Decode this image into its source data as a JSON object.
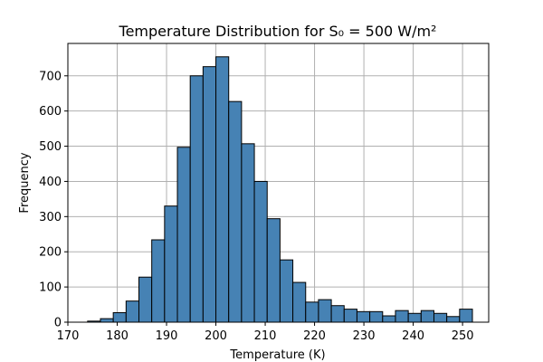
{
  "chart_data": {
    "type": "bar",
    "title": "Temperature Distribution for S₀ = 500 W/m²",
    "xlabel": "Temperature (K)",
    "ylabel": "Frequency",
    "xlim": [
      170,
      255.3
    ],
    "ylim": [
      0,
      792
    ],
    "x_ticks": [
      170,
      180,
      190,
      200,
      210,
      220,
      230,
      240,
      250
    ],
    "y_ticks": [
      0,
      100,
      200,
      300,
      400,
      500,
      600,
      700
    ],
    "grid": true,
    "bin_edges": [
      174.0,
      176.6,
      179.2,
      181.8,
      184.4,
      187.0,
      189.6,
      192.2,
      194.8,
      197.4,
      200.0,
      202.6,
      205.2,
      207.8,
      210.4,
      213.0,
      215.6,
      218.2,
      220.8,
      223.4,
      226.0,
      228.6,
      231.2,
      233.8,
      236.4,
      239.0,
      241.6,
      244.2,
      246.8,
      249.4,
      252.0
    ],
    "counts": [
      3,
      10,
      27,
      60,
      128,
      234,
      330,
      497,
      700,
      726,
      754,
      627,
      507,
      400,
      294,
      177,
      113,
      57,
      64,
      47,
      37,
      30,
      30,
      18,
      33,
      25,
      33,
      25,
      16,
      37
    ],
    "bar_color": "#4682b4",
    "edge_color": "#000000",
    "grid_color": "#b0b0b0"
  }
}
